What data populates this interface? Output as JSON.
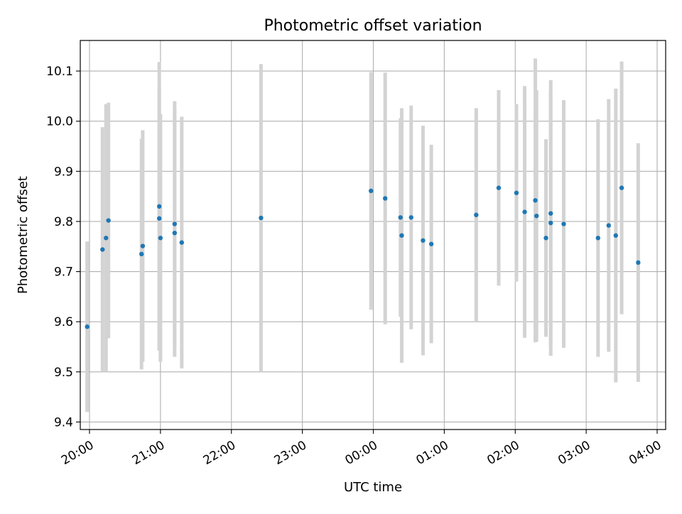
{
  "chart_data": {
    "type": "scatter",
    "title": "Photometric offset variation",
    "xlabel": "UTC time",
    "ylabel": "Photometric offset",
    "grid": true,
    "x_unit": "hours (UTC, 20:00 on first night = 20)",
    "xlim": [
      19.87,
      28.12
    ],
    "ylim": [
      9.385,
      10.161
    ],
    "x_ticks": [
      20,
      21,
      22,
      23,
      24,
      25,
      26,
      27,
      28
    ],
    "x_tick_labels": [
      "20:00",
      "21:00",
      "22:00",
      "23:00",
      "00:00",
      "01:00",
      "02:00",
      "03:00",
      "04:00"
    ],
    "y_ticks": [
      9.4,
      9.5,
      9.6,
      9.7,
      9.8,
      9.9,
      10.0,
      10.1
    ],
    "y_tick_labels": [
      "9.4",
      "9.5",
      "9.6",
      "9.7",
      "9.8",
      "9.9",
      "10.0",
      "10.1"
    ],
    "colors": {
      "points": "#1f77b4",
      "errorbars": "#d3d3d3",
      "grid": "#b0b0b0"
    },
    "series": [
      {
        "points": [
          {
            "x": 19.967,
            "y": 9.59,
            "lo": 9.42,
            "hi": 9.76
          },
          {
            "x": 20.183,
            "y": 9.744,
            "lo": 9.5,
            "hi": 9.988
          },
          {
            "x": 20.233,
            "y": 9.767,
            "lo": 9.5,
            "hi": 10.034
          },
          {
            "x": 20.267,
            "y": 9.802,
            "lo": 9.567,
            "hi": 10.037
          },
          {
            "x": 20.733,
            "y": 9.735,
            "lo": 9.505,
            "hi": 9.965
          },
          {
            "x": 20.75,
            "y": 9.751,
            "lo": 9.52,
            "hi": 9.982
          },
          {
            "x": 20.983,
            "y": 9.83,
            "lo": 9.542,
            "hi": 10.118
          },
          {
            "x": 20.983,
            "y": 9.806,
            "lo": 9.545,
            "hi": 10.067
          },
          {
            "x": 21.0,
            "y": 9.767,
            "lo": 9.52,
            "hi": 10.014
          },
          {
            "x": 21.2,
            "y": 9.795,
            "lo": 9.55,
            "hi": 10.04
          },
          {
            "x": 21.2,
            "y": 9.777,
            "lo": 9.53,
            "hi": 10.024
          },
          {
            "x": 21.3,
            "y": 9.758,
            "lo": 9.507,
            "hi": 10.009
          },
          {
            "x": 22.417,
            "y": 9.807,
            "lo": 9.5,
            "hi": 10.114
          },
          {
            "x": 23.967,
            "y": 9.861,
            "lo": 9.624,
            "hi": 10.098
          },
          {
            "x": 24.167,
            "y": 9.846,
            "lo": 9.595,
            "hi": 10.097
          },
          {
            "x": 24.383,
            "y": 9.808,
            "lo": 9.61,
            "hi": 10.006
          },
          {
            "x": 24.4,
            "y": 9.772,
            "lo": 9.518,
            "hi": 10.026
          },
          {
            "x": 24.533,
            "y": 9.808,
            "lo": 9.585,
            "hi": 10.031
          },
          {
            "x": 24.7,
            "y": 9.762,
            "lo": 9.533,
            "hi": 9.991
          },
          {
            "x": 24.817,
            "y": 9.755,
            "lo": 9.557,
            "hi": 9.953
          },
          {
            "x": 25.45,
            "y": 9.813,
            "lo": 9.6,
            "hi": 10.026
          },
          {
            "x": 25.767,
            "y": 9.867,
            "lo": 9.672,
            "hi": 10.062
          },
          {
            "x": 26.017,
            "y": 9.857,
            "lo": 9.68,
            "hi": 10.034
          },
          {
            "x": 26.133,
            "y": 9.819,
            "lo": 9.568,
            "hi": 10.07
          },
          {
            "x": 26.283,
            "y": 9.842,
            "lo": 9.559,
            "hi": 10.125
          },
          {
            "x": 26.3,
            "y": 9.811,
            "lo": 9.56,
            "hi": 10.062
          },
          {
            "x": 26.433,
            "y": 9.767,
            "lo": 9.57,
            "hi": 9.964
          },
          {
            "x": 26.5,
            "y": 9.816,
            "lo": 9.55,
            "hi": 10.082
          },
          {
            "x": 26.5,
            "y": 9.797,
            "lo": 9.532,
            "hi": 10.062
          },
          {
            "x": 26.683,
            "y": 9.795,
            "lo": 9.548,
            "hi": 10.042
          },
          {
            "x": 27.167,
            "y": 9.767,
            "lo": 9.53,
            "hi": 10.004
          },
          {
            "x": 27.317,
            "y": 9.792,
            "lo": 9.54,
            "hi": 10.044
          },
          {
            "x": 27.417,
            "y": 9.772,
            "lo": 9.479,
            "hi": 10.065
          },
          {
            "x": 27.5,
            "y": 9.867,
            "lo": 9.615,
            "hi": 10.119
          },
          {
            "x": 27.733,
            "y": 9.718,
            "lo": 9.48,
            "hi": 9.956
          }
        ]
      }
    ]
  }
}
